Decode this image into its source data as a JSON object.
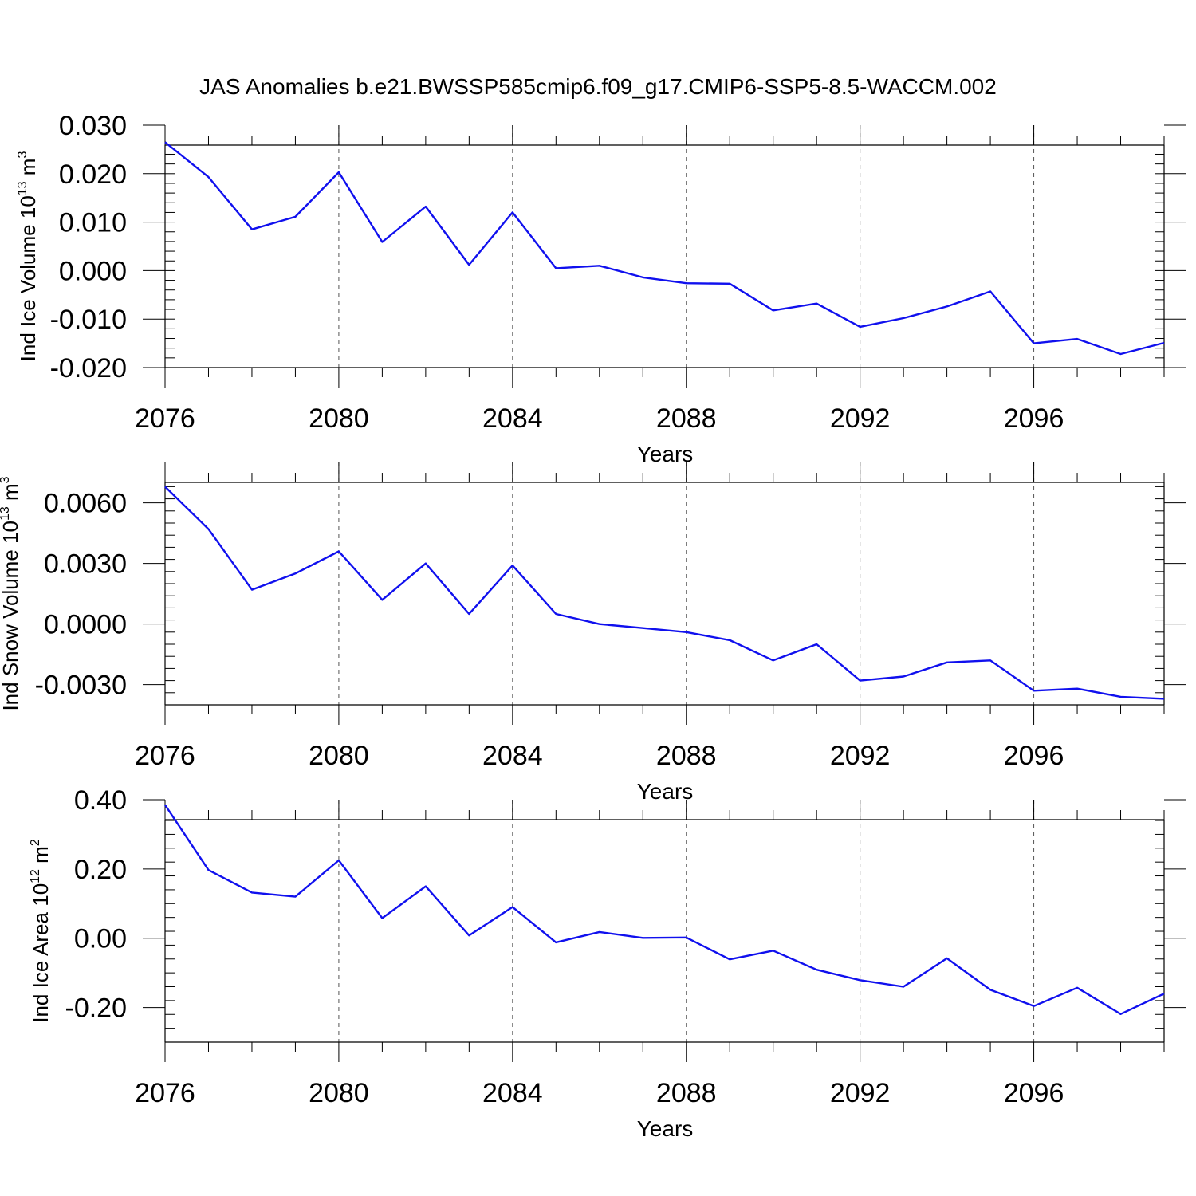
{
  "title": "JAS Anomalies b.e21.BWSSP585cmip6.f09_g17.CMIP6-SSP5-8.5-WACCM.002",
  "colors": {
    "line": "#1010ee",
    "axis": "#000000",
    "grid": "#555555"
  },
  "chart_data": [
    {
      "type": "line",
      "xlabel": "Years",
      "ylabel": {
        "text": "Ind Ice Volume 10",
        "sup": "13",
        "unit": " m",
        "unit_sup": "3"
      },
      "xlim": [
        2076,
        2099
      ],
      "ylim": [
        -0.02,
        0.03
      ],
      "x_ticks": [
        "2076",
        "2080",
        "2084",
        "2088",
        "2092",
        "2096"
      ],
      "y_ticks": [
        "0.030",
        "0.020",
        "0.010",
        "0.000",
        "-0.010",
        "-0.020"
      ],
      "y_tick_values": [
        0.03,
        0.02,
        0.01,
        0.0,
        -0.01,
        -0.02
      ],
      "x": [
        2076,
        2077,
        2078,
        2079,
        2080,
        2081,
        2082,
        2083,
        2084,
        2085,
        2086,
        2087,
        2088,
        2089,
        2090,
        2091,
        2092,
        2093,
        2094,
        2095,
        2096,
        2097,
        2098,
        2099
      ],
      "values": [
        0.0265,
        0.0193,
        0.0085,
        0.0111,
        0.0203,
        0.0059,
        0.0132,
        0.0012,
        0.012,
        0.0005,
        0.001,
        -0.0014,
        -0.0026,
        -0.0027,
        -0.0082,
        -0.0068,
        -0.0116,
        -0.0098,
        -0.0074,
        -0.0043,
        -0.015,
        -0.0141,
        -0.0172,
        -0.0149
      ],
      "grid_x": true
    },
    {
      "type": "line",
      "xlabel": "Years",
      "ylabel": {
        "text": "Ind Snow Volume 10",
        "sup": "13",
        "unit": " m",
        "unit_sup": "3"
      },
      "xlim": [
        2076,
        2099
      ],
      "ylim": [
        -0.004,
        0.008
      ],
      "x_ticks": [
        "2076",
        "2080",
        "2084",
        "2088",
        "2092",
        "2096"
      ],
      "y_ticks": [
        "0.0060",
        "0.0030",
        "0.0000",
        "-0.0030"
      ],
      "y_tick_values": [
        0.006,
        0.003,
        0.0,
        -0.003
      ],
      "x": [
        2076,
        2077,
        2078,
        2079,
        2080,
        2081,
        2082,
        2083,
        2084,
        2085,
        2086,
        2087,
        2088,
        2089,
        2090,
        2091,
        2092,
        2093,
        2094,
        2095,
        2096,
        2097,
        2098,
        2099
      ],
      "values": [
        0.0068,
        0.0047,
        0.0017,
        0.0025,
        0.0036,
        0.0012,
        0.003,
        0.0005,
        0.0029,
        0.0005,
        0.0,
        -0.0002,
        -0.0004,
        -0.0008,
        -0.0018,
        -0.001,
        -0.0028,
        -0.0026,
        -0.0019,
        -0.0018,
        -0.0033,
        -0.0032,
        -0.0036,
        -0.0037
      ],
      "grid_x": true
    },
    {
      "type": "line",
      "xlabel": "Years",
      "ylabel": {
        "text": "Ind Ice Area 10",
        "sup": "12",
        "unit": " m",
        "unit_sup": "2"
      },
      "xlim": [
        2076,
        2099
      ],
      "ylim": [
        -0.3,
        0.4
      ],
      "x_ticks": [
        "2076",
        "2080",
        "2084",
        "2088",
        "2092",
        "2096"
      ],
      "y_ticks": [
        "0.40",
        "0.20",
        "0.00",
        "-0.20"
      ],
      "y_tick_values": [
        0.4,
        0.2,
        0.0,
        -0.2
      ],
      "x": [
        2076,
        2077,
        2078,
        2079,
        2080,
        2081,
        2082,
        2083,
        2084,
        2085,
        2086,
        2087,
        2088,
        2089,
        2090,
        2091,
        2092,
        2093,
        2094,
        2095,
        2096,
        2097,
        2098,
        2099
      ],
      "values": [
        0.385,
        0.197,
        0.132,
        0.12,
        0.225,
        0.058,
        0.15,
        0.008,
        0.09,
        -0.012,
        0.018,
        0.001,
        0.002,
        -0.061,
        -0.036,
        -0.091,
        -0.121,
        -0.14,
        -0.058,
        -0.149,
        -0.196,
        -0.143,
        -0.219,
        -0.16
      ],
      "grid_x": true
    }
  ]
}
